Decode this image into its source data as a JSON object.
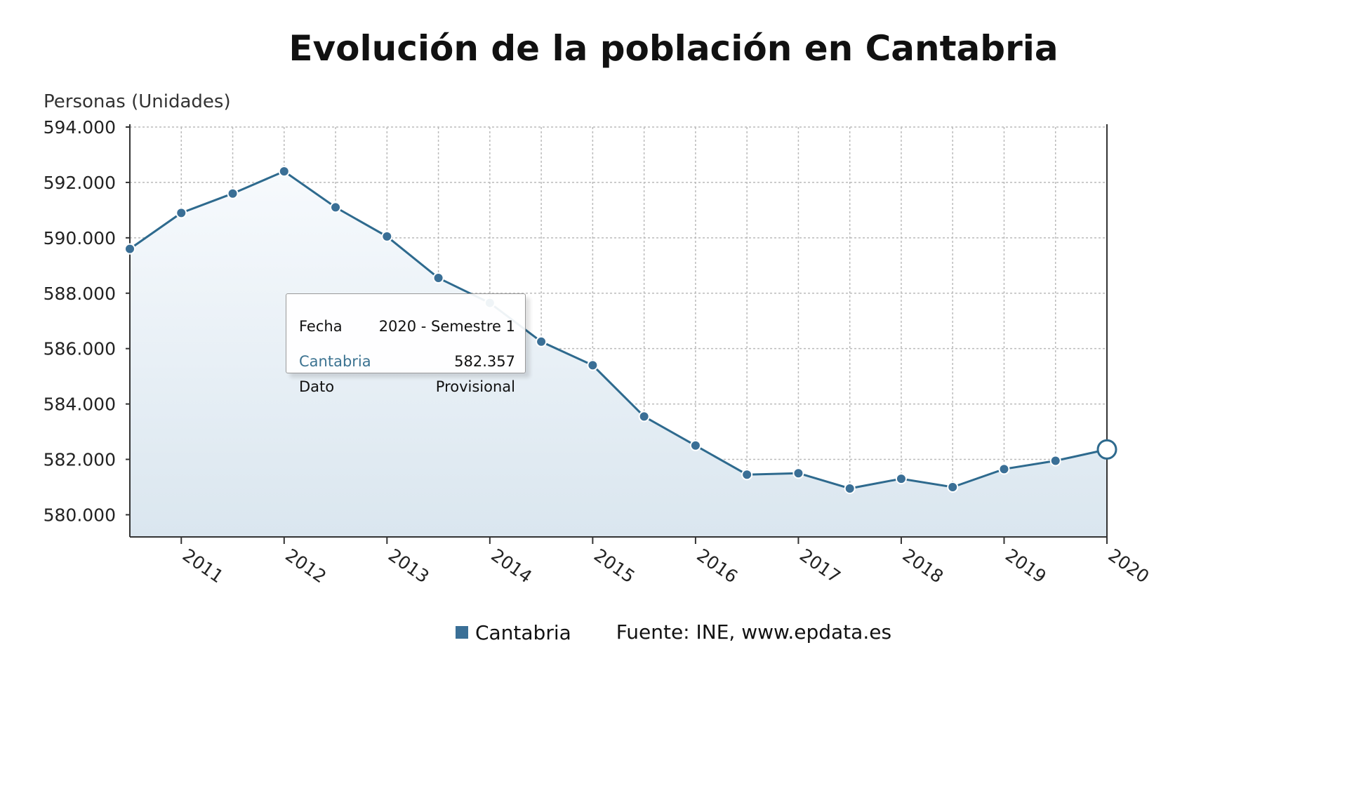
{
  "chart_data": {
    "type": "area",
    "title": "Evolución de la población en Cantabria",
    "ylabel": "Personas (Unidades)",
    "ylim": [
      579200,
      594000
    ],
    "yticks": [
      580000,
      582000,
      584000,
      586000,
      588000,
      590000,
      592000,
      594000
    ],
    "ytick_labels": [
      "580.000",
      "582.000",
      "584.000",
      "586.000",
      "588.000",
      "590.000",
      "592.000",
      "594.000"
    ],
    "xlim": [
      2010.5,
      2020
    ],
    "xticks": [
      2011,
      2012,
      2013,
      2014,
      2015,
      2016,
      2017,
      2018,
      2019,
      2020
    ],
    "xtick_labels": [
      "2011",
      "2012",
      "2013",
      "2014",
      "2015",
      "2016",
      "2017",
      "2018",
      "2019",
      "2020"
    ],
    "grid": true,
    "series": [
      {
        "name": "Cantabria",
        "x": [
          2010.5,
          2011,
          2011.5,
          2012,
          2012.5,
          2013,
          2013.5,
          2014,
          2014.5,
          2015,
          2015.5,
          2016,
          2016.5,
          2017,
          2017.5,
          2018,
          2018.5,
          2019,
          2019.5,
          2020
        ],
        "values": [
          589600,
          590900,
          591600,
          592400,
          591100,
          590050,
          588550,
          587650,
          586250,
          585400,
          583550,
          582500,
          581450,
          581500,
          580950,
          581300,
          581000,
          581650,
          581950,
          582357
        ]
      }
    ],
    "legend": {
      "placement": "bottom",
      "entries": [
        "Cantabria"
      ]
    },
    "source": "Fuente: INE, www.epdata.es",
    "tooltip": {
      "rows": [
        {
          "label": "Fecha",
          "value": "2020 - Semestre 1"
        },
        {
          "label": "Cantabria",
          "value": "582.357"
        },
        {
          "label": "Dato",
          "value": "Provisional"
        }
      ]
    }
  },
  "colors": {
    "line": "#2e6a8e",
    "marker": "#3a6f96",
    "area_top": "#f7fafd",
    "area_bottom": "#dae6ef",
    "grid": "#bbbbbb",
    "tooltip_series": "#3c7391"
  }
}
